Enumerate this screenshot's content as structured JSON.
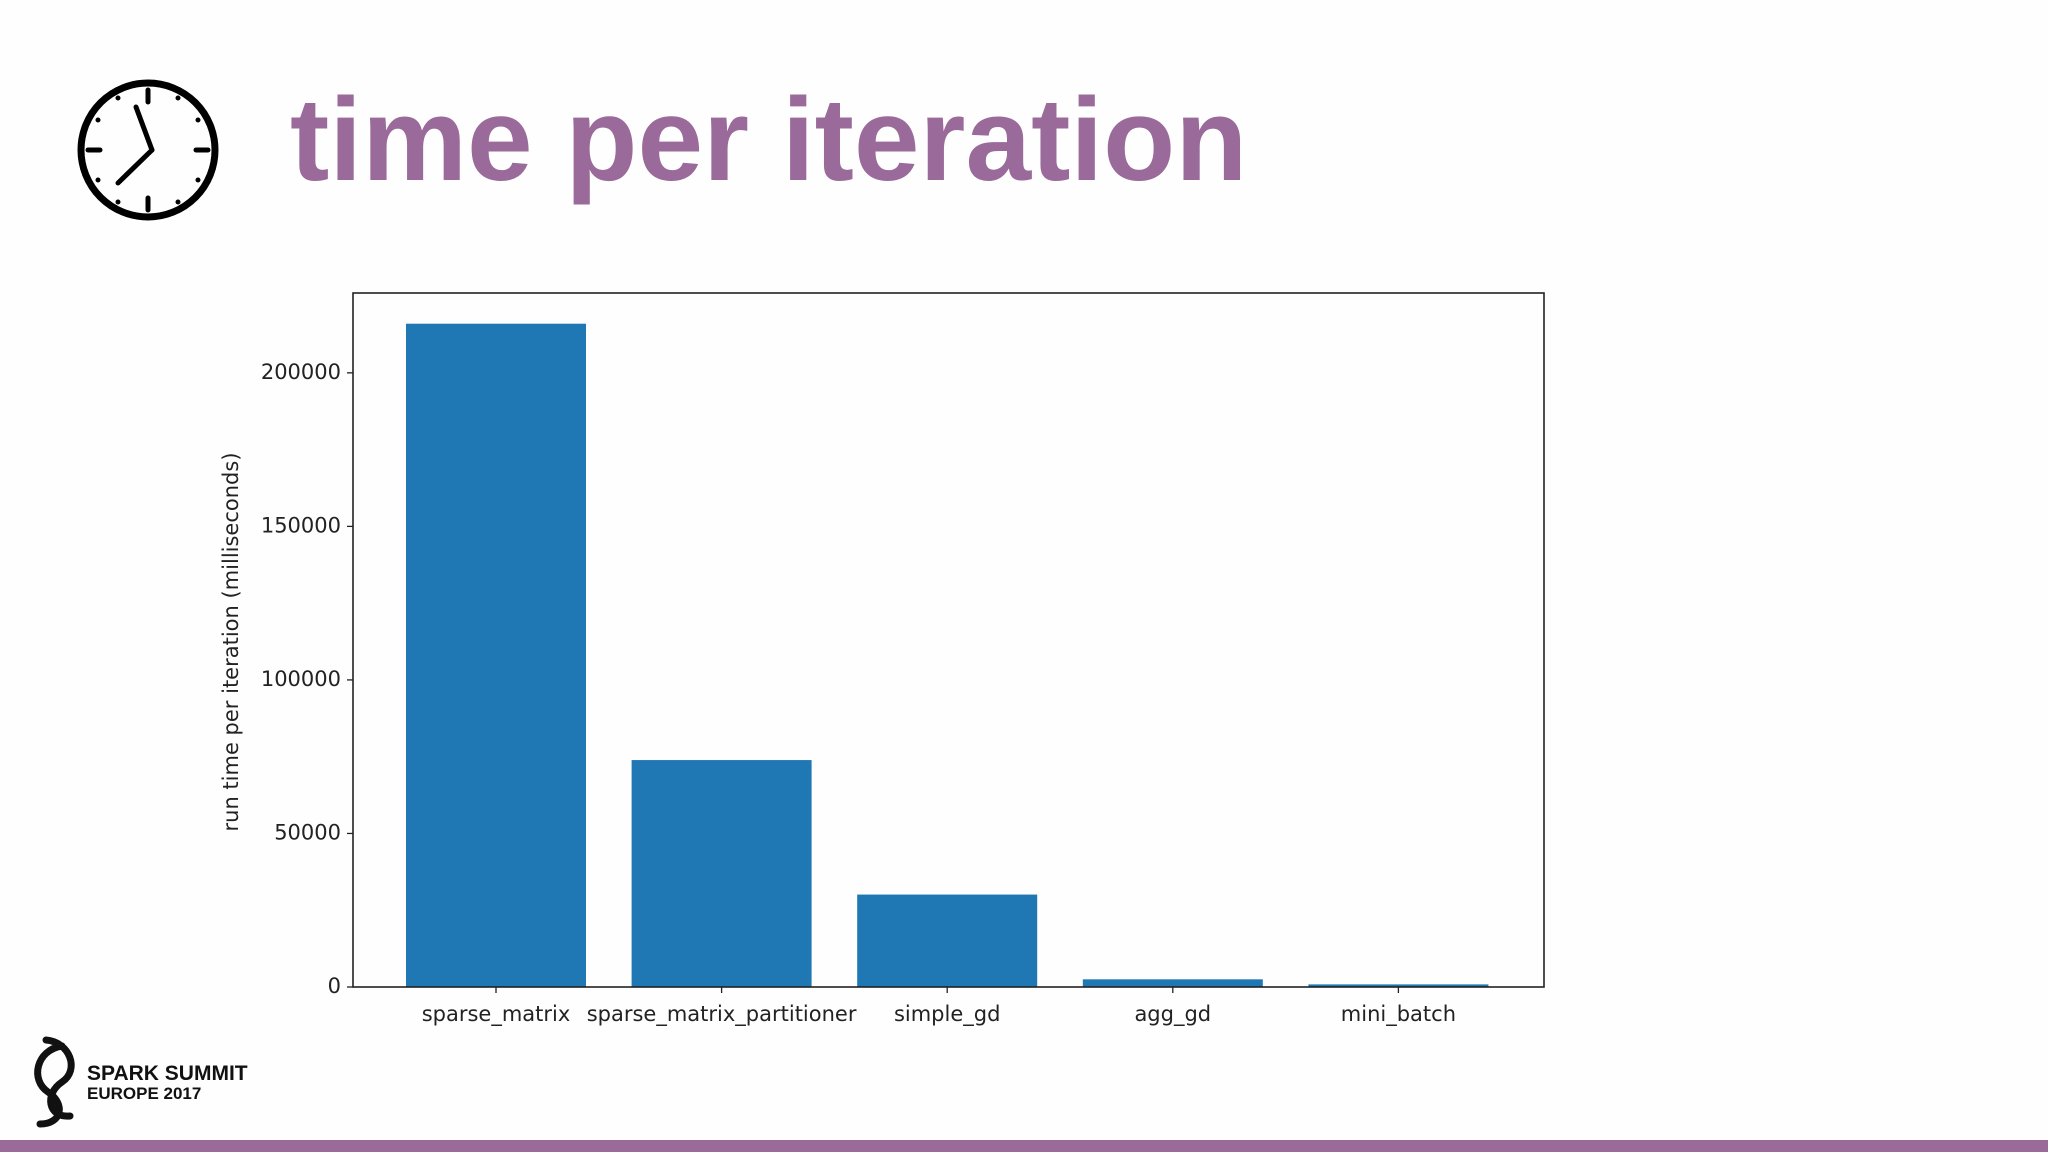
{
  "slide_title": "time per iteration",
  "logo": {
    "line1": "SPARK SUMMIT",
    "line2": "EUROPE 2017"
  },
  "chart_data": {
    "type": "bar",
    "ylabel": "run time per iteration (milliseconds)",
    "categories": [
      "sparse_matrix",
      "sparse_matrix_partitioner",
      "simple_gd",
      "agg_gd",
      "mini_batch"
    ],
    "values": [
      216000,
      73900,
      30100,
      2500,
      850
    ],
    "color": "#1f77b4",
    "ylim": [
      0,
      226000
    ],
    "yticks": [
      0,
      50000,
      100000,
      150000,
      200000
    ]
  }
}
